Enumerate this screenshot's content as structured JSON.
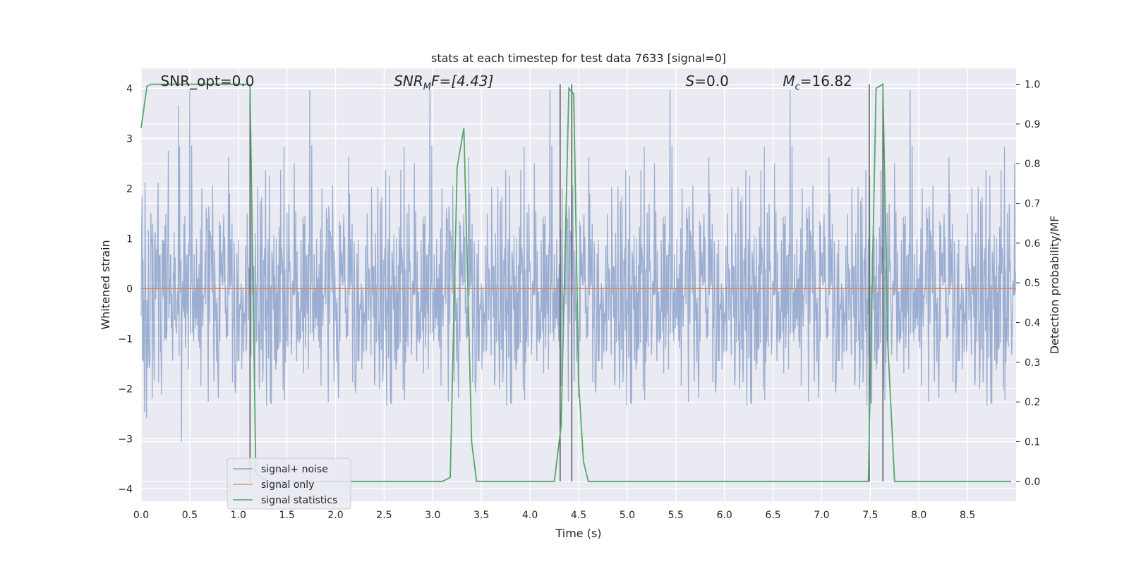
{
  "chart_data": {
    "type": "line",
    "title": "stats at each timestep for test data 7633 [signal=0]",
    "xlabel": "Time (s)",
    "ylabel_left": "Whitened strain",
    "ylabel_right": "Detection probability/MF",
    "xlim": [
      0.0,
      9.0
    ],
    "ylim_left": [
      -4.25,
      4.4
    ],
    "ylim_right": [
      -0.05,
      1.04
    ],
    "xticks": [
      0.0,
      0.5,
      1.0,
      1.5,
      2.0,
      2.5,
      3.0,
      3.5,
      4.0,
      4.5,
      5.0,
      5.5,
      6.0,
      6.5,
      7.0,
      7.5,
      8.0,
      8.5
    ],
    "xtick_labels": [
      "0.0",
      "0.5",
      "1.0",
      "1.5",
      "2.0",
      "2.5",
      "3.0",
      "3.5",
      "4.0",
      "4.5",
      "5.0",
      "5.5",
      "6.0",
      "6.5",
      "7.0",
      "7.5",
      "8.0",
      "8.5"
    ],
    "yticks_left": [
      4,
      3,
      2,
      1,
      0,
      -1,
      -2,
      -3,
      -4
    ],
    "ytick_labels_left": [
      "4",
      "3",
      "2",
      "1",
      "0",
      "−1",
      "−2",
      "−3",
      "−4"
    ],
    "yticks_right": [
      1.0,
      0.9,
      0.8,
      0.7,
      0.6,
      0.5,
      0.4,
      0.3,
      0.2,
      0.1,
      0.0
    ],
    "ytick_labels_right": [
      "1.0",
      "0.9",
      "0.8",
      "0.7",
      "0.6",
      "0.5",
      "0.4",
      "0.3",
      "0.2",
      "0.1",
      "0.0"
    ],
    "grid": true,
    "legend_placement": "lower-left",
    "annotations": {
      "snr_opt_prefix": "SNR_opt=",
      "snr_opt_value": "0.0",
      "snr_mf_main": "SNR",
      "snr_mf_sub": "M",
      "snr_mf_rest": "F=[4.43]",
      "s_main": "S",
      "s_rest": "=0.0",
      "mc_main": "M",
      "mc_sub": "c",
      "mc_rest": "=16.82"
    },
    "series": [
      {
        "name": "signal+ noise",
        "axis": "left",
        "kind": "noise",
        "dt": 0.005,
        "color": "#4c72b0",
        "description_range": [
          -4.0,
          4.0
        ]
      },
      {
        "name": "signal only",
        "axis": "left",
        "x": [
          0.0,
          9.0
        ],
        "y": [
          0.0,
          0.0
        ],
        "color": "#dd8452"
      },
      {
        "name": "signal statistics",
        "axis": "right",
        "color": "#55a868",
        "x": [
          0.0,
          0.06,
          0.1,
          0.2,
          0.3,
          0.5,
          0.7,
          0.9,
          1.0,
          1.1,
          1.12,
          1.18,
          1.3,
          1.5,
          2.0,
          2.5,
          2.85,
          3.1,
          3.18,
          3.25,
          3.32,
          3.4,
          3.45,
          3.6,
          4.0,
          4.25,
          4.32,
          4.4,
          4.45,
          4.5,
          4.55,
          4.6,
          5.0,
          6.0,
          7.0,
          7.48,
          7.52,
          7.56,
          7.63,
          7.68,
          7.75,
          7.8,
          8.5,
          8.95
        ],
        "y": [
          0.89,
          0.995,
          1.0,
          1.0,
          1.0,
          1.0,
          1.0,
          1.0,
          1.0,
          1.0,
          0.995,
          0.02,
          0.0,
          0.0,
          0.0,
          0.0,
          0.0,
          0.0,
          0.01,
          0.79,
          0.89,
          0.1,
          0.0,
          0.0,
          0.0,
          0.0,
          0.14,
          0.99,
          0.975,
          0.25,
          0.05,
          0.0,
          0.0,
          0.0,
          0.0,
          0.0,
          0.5,
          0.99,
          1.0,
          0.35,
          0.0,
          0.0,
          0.0,
          0.0
        ]
      }
    ],
    "vertical_markers": {
      "color": "#555555",
      "x": [
        1.12,
        4.31,
        4.43,
        7.49,
        7.63
      ]
    }
  }
}
